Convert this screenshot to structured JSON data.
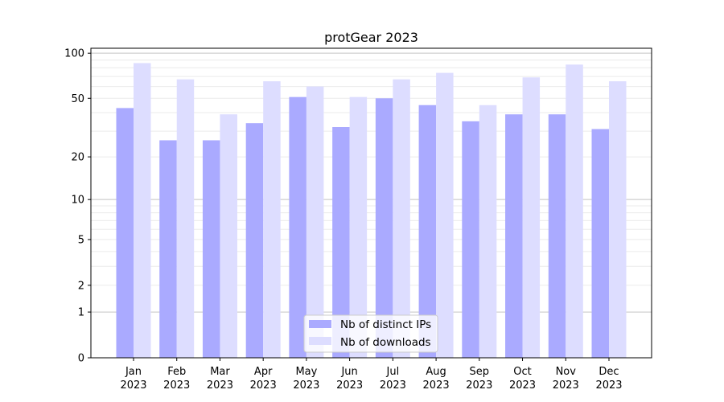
{
  "chart_data": {
    "type": "bar",
    "title": "protGear 2023",
    "xlabel": "",
    "ylabel": "",
    "yscale": "log(1+y)",
    "ylim": [
      0,
      110
    ],
    "yticks": [
      0,
      1,
      2,
      5,
      10,
      20,
      50,
      100
    ],
    "grid": true,
    "legend_position": "bottom-center",
    "categories": [
      "Jan\n2023",
      "Feb\n2023",
      "Mar\n2023",
      "Apr\n2023",
      "May\n2023",
      "Jun\n2023",
      "Jul\n2023",
      "Aug\n2023",
      "Sep\n2023",
      "Oct\n2023",
      "Nov\n2023",
      "Dec\n2023"
    ],
    "series": [
      {
        "name": "Nb of distinct IPs",
        "color": "#aaaaff",
        "values": [
          43,
          26,
          26,
          34,
          51,
          32,
          50,
          45,
          35,
          39,
          39,
          31
        ]
      },
      {
        "name": "Nb of downloads",
        "color": "#ddddff",
        "values": [
          86,
          67,
          39,
          65,
          60,
          51,
          67,
          74,
          45,
          69,
          84,
          65
        ]
      }
    ]
  }
}
